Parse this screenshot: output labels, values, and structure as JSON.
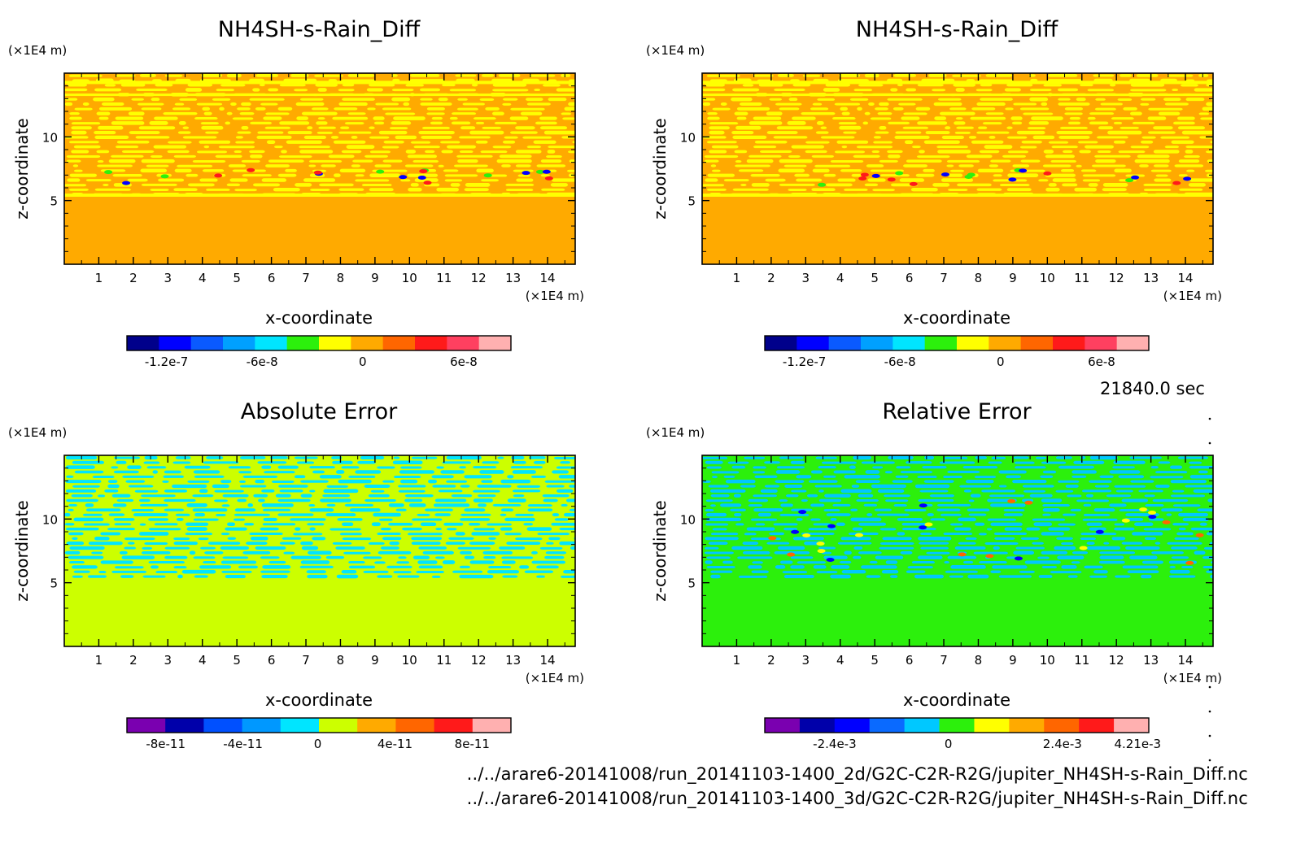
{
  "time_label": "21840.0 sec",
  "files": [
    "../../arare6-20141008/run_20141103-1400_2d/G2C-C2R-R2G/jupiter_NH4SH-s-Rain_Diff.nc",
    "../../arare6-20141008/run_20141103-1400_3d/G2C-C2R-R2G/jupiter_NH4SH-s-Rain_Diff.nc"
  ],
  "chart_data": [
    {
      "type": "heatmap",
      "title": "NH4SH-s-Rain_Diff",
      "xlabel": "x-coordinate",
      "ylabel": "z-coordinate",
      "x_unit": "(×1E4 m)",
      "y_unit": "(×1E4 m)",
      "xlim": [
        0,
        14.8
      ],
      "ylim": [
        0,
        15
      ],
      "xticks": [
        "1",
        "2",
        "3",
        "4",
        "5",
        "6",
        "7",
        "8",
        "9",
        "10",
        "11",
        "12",
        "13",
        "14"
      ],
      "yticks": [
        "5",
        "10"
      ],
      "colorbar": {
        "colors": [
          "#00008b",
          "#0000ff",
          "#0a5aff",
          "#00a0ff",
          "#00e5ff",
          "#2cf00c",
          "#ffff00",
          "#ffaa00",
          "#ff6600",
          "#ff1a1a",
          "#ff4060",
          "#ffb0b0"
        ],
        "labels": [
          "-1.2e-7",
          "-6e-8",
          "0",
          "6e-8"
        ]
      },
      "background_color": "#ffaa00",
      "pattern_color": "#ffff00",
      "note_colors": [
        "#2cf00c",
        "#0000ff",
        "#ff1a1a"
      ]
    },
    {
      "type": "heatmap",
      "title": "NH4SH-s-Rain_Diff",
      "xlabel": "x-coordinate",
      "ylabel": "z-coordinate",
      "x_unit": "(×1E4 m)",
      "y_unit": "(×1E4 m)",
      "xlim": [
        0,
        14.8
      ],
      "ylim": [
        0,
        15
      ],
      "xticks": [
        "1",
        "2",
        "3",
        "4",
        "5",
        "6",
        "7",
        "8",
        "9",
        "10",
        "11",
        "12",
        "13",
        "14"
      ],
      "yticks": [
        "5",
        "10"
      ],
      "colorbar": {
        "colors": [
          "#00008b",
          "#0000ff",
          "#0a5aff",
          "#00a0ff",
          "#00e5ff",
          "#2cf00c",
          "#ffff00",
          "#ffaa00",
          "#ff6600",
          "#ff1a1a",
          "#ff4060",
          "#ffb0b0"
        ],
        "labels": [
          "-1.2e-7",
          "-6e-8",
          "0",
          "6e-8"
        ]
      },
      "background_color": "#ffaa00",
      "pattern_color": "#ffff00",
      "note_colors": [
        "#2cf00c",
        "#0000ff",
        "#ff1a1a"
      ]
    },
    {
      "type": "heatmap",
      "title": "Absolute Error",
      "xlabel": "x-coordinate",
      "ylabel": "z-coordinate",
      "x_unit": "(×1E4 m)",
      "y_unit": "(×1E4 m)",
      "xlim": [
        0,
        14.8
      ],
      "ylim": [
        0,
        15
      ],
      "xticks": [
        "1",
        "2",
        "3",
        "4",
        "5",
        "6",
        "7",
        "8",
        "9",
        "10",
        "11",
        "12",
        "13",
        "14"
      ],
      "yticks": [
        "5",
        "10"
      ],
      "colorbar": {
        "colors": [
          "#7a00b0",
          "#0000aa",
          "#0050ff",
          "#0098ff",
          "#00e5ff",
          "#ccff00",
          "#ffaa00",
          "#ff6600",
          "#ff1a1a",
          "#ffb0b0"
        ],
        "labels": [
          "-8e-11",
          "-4e-11",
          "0",
          "4e-11",
          "8e-11"
        ]
      },
      "background_color": "#ccff00",
      "pattern_color": "#00e5ff",
      "note_colors": []
    },
    {
      "type": "heatmap",
      "title": "Relative Error",
      "xlabel": "x-coordinate",
      "ylabel": "z-coordinate",
      "x_unit": "(×1E4 m)",
      "y_unit": "(×1E4 m)",
      "xlim": [
        0,
        14.8
      ],
      "ylim": [
        0,
        15
      ],
      "xticks": [
        "1",
        "2",
        "3",
        "4",
        "5",
        "6",
        "7",
        "8",
        "9",
        "10",
        "11",
        "12",
        "13",
        "14"
      ],
      "yticks": [
        "5",
        "10"
      ],
      "colorbar": {
        "colors": [
          "#7a00b0",
          "#0000aa",
          "#0000ff",
          "#0a6aff",
          "#00c8ff",
          "#2cf00c",
          "#ffff00",
          "#ffaa00",
          "#ff6600",
          "#ff1a1a",
          "#ffb0b0"
        ],
        "labels": [
          "-2.4e-3",
          "0",
          "2.4e-3",
          "4.21e-3"
        ]
      },
      "background_color": "#2cf00c",
      "pattern_color": "#00c8ff",
      "note_colors": [
        "#0000ff",
        "#ff6600",
        "#ffff00"
      ]
    }
  ]
}
